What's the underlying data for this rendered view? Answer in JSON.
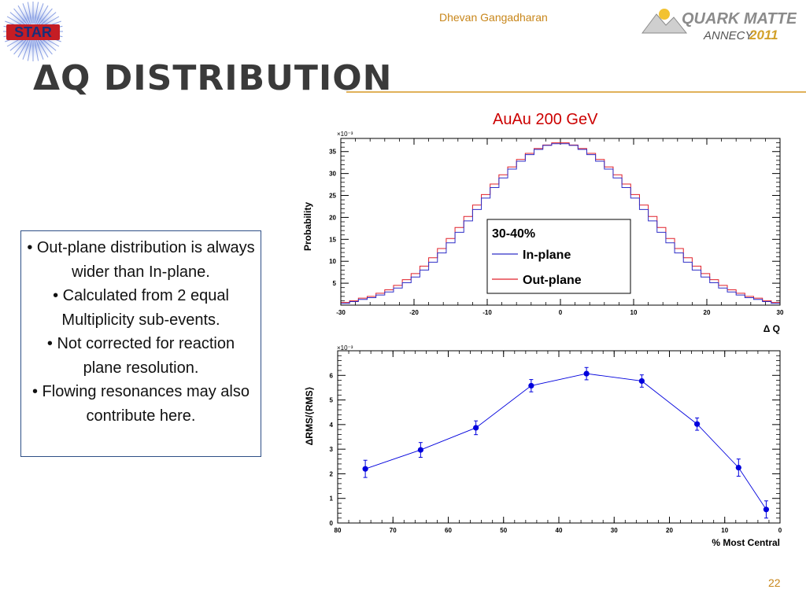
{
  "header": {
    "author": "Dhevan Gangadharan",
    "logo_left": "STAR",
    "logo_right_line1": "QUARK MATTER",
    "logo_right_line2": "ANNECY",
    "logo_right_year": "2011"
  },
  "slide": {
    "title": "ΔQ DISTRIBUTION",
    "page_number": "22"
  },
  "bullets": [
    "• Out-plane distribution is always wider than In-plane.",
    "• Calculated from 2 equal Multiplicity sub-events.",
    "• Not corrected for reaction plane resolution.",
    "• Flowing resonances may also contribute here."
  ],
  "plot_subtitle": "AuAu 200 GeV",
  "colors": {
    "in_plane": "#2f2fc8",
    "out_plane": "#e0202a",
    "rms_series": "#0000dd",
    "accent": "#c8861a"
  },
  "chart_data": [
    {
      "type": "line",
      "style": "histogram",
      "xlabel": "Δ Q",
      "ylabel": "Probability",
      "yexponent": "×10⁻³",
      "xlim": [
        -30,
        30
      ],
      "ylim": [
        0,
        38
      ],
      "xticks": [
        -30,
        -20,
        -10,
        0,
        10,
        20,
        30
      ],
      "yticks": [
        5,
        10,
        15,
        20,
        25,
        30,
        35
      ],
      "legend": {
        "title": "30-40%",
        "position": "center-right"
      },
      "bin_width": 1.2,
      "x": [
        -29.4,
        -28.2,
        -27,
        -25.8,
        -24.6,
        -23.4,
        -22.2,
        -21,
        -19.8,
        -18.6,
        -17.4,
        -16.2,
        -15,
        -13.8,
        -12.6,
        -11.4,
        -10.2,
        -9,
        -7.8,
        -6.6,
        -5.4,
        -4.2,
        -3,
        -1.8,
        -0.6,
        0.6,
        1.8,
        3,
        4.2,
        5.4,
        6.6,
        7.8,
        9,
        10.2,
        11.4,
        12.6,
        13.8,
        15,
        16.2,
        17.4,
        18.6,
        19.8,
        21,
        22.2,
        23.4,
        24.6,
        25.8,
        27,
        28.2,
        29.4
      ],
      "series": [
        {
          "name": "In-plane",
          "values": [
            0.4,
            0.8,
            1.3,
            1.7,
            2.3,
            3.0,
            3.9,
            5.1,
            6.4,
            8.0,
            9.8,
            11.9,
            14.2,
            16.6,
            19.2,
            21.8,
            24.4,
            26.8,
            29.0,
            31.0,
            32.8,
            34.3,
            35.5,
            36.4,
            36.8,
            36.8,
            36.4,
            35.5,
            34.3,
            32.8,
            31.0,
            29.0,
            26.8,
            24.4,
            21.8,
            19.2,
            16.6,
            14.2,
            11.9,
            9.8,
            8.0,
            6.4,
            5.1,
            3.9,
            3.0,
            2.3,
            1.7,
            1.3,
            0.8,
            0.4
          ]
        },
        {
          "name": "Out-plane",
          "values": [
            0.6,
            1.0,
            1.6,
            2.0,
            2.7,
            3.5,
            4.5,
            5.8,
            7.2,
            8.9,
            10.8,
            12.9,
            15.2,
            17.7,
            20.2,
            22.8,
            25.2,
            27.6,
            29.7,
            31.5,
            33.2,
            34.6,
            35.7,
            36.5,
            37.0,
            37.0,
            36.5,
            35.7,
            34.6,
            33.2,
            31.5,
            29.7,
            27.6,
            25.2,
            22.8,
            20.2,
            17.7,
            15.2,
            12.9,
            10.8,
            8.9,
            7.2,
            5.8,
            4.5,
            3.5,
            2.7,
            2.0,
            1.6,
            1.0,
            0.6
          ]
        }
      ]
    },
    {
      "type": "scatter",
      "xlabel": "% Most Central",
      "ylabel": "ΔRMS/⟨RMS⟩",
      "yexponent": "×10⁻³",
      "xlim": [
        80,
        0
      ],
      "ylim": [
        0,
        7
      ],
      "xticks": [
        80,
        70,
        60,
        50,
        40,
        30,
        20,
        10,
        0
      ],
      "yticks": [
        0,
        1,
        2,
        3,
        4,
        5,
        6
      ],
      "x": [
        75,
        65,
        55,
        45,
        35,
        25,
        15,
        7.5,
        2.5
      ],
      "values": [
        2.2,
        2.97,
        3.87,
        5.58,
        6.07,
        5.77,
        4.02,
        2.25,
        0.55
      ],
      "errors": [
        0.35,
        0.3,
        0.28,
        0.25,
        0.25,
        0.25,
        0.25,
        0.35,
        0.35
      ]
    }
  ]
}
